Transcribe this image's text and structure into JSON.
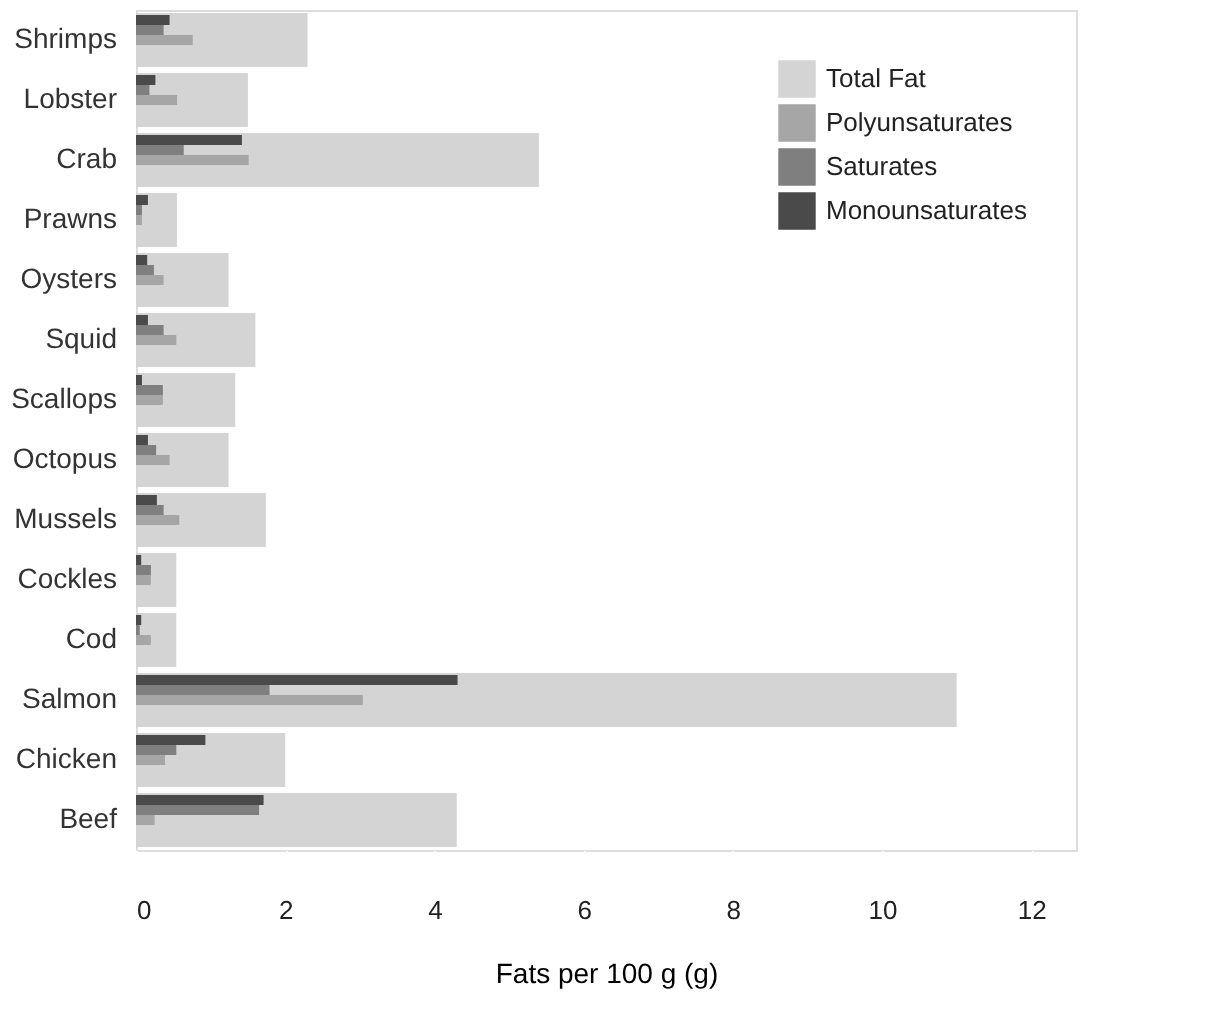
{
  "chart_data": {
    "type": "bar",
    "orientation": "horizontal",
    "xlabel": "Fats per 100 g (g)",
    "categories": [
      "Shrimps",
      "Lobster",
      "Crab",
      "Prawns",
      "Oysters",
      "Squid",
      "Scallops",
      "Octopus",
      "Mussels",
      "Cockles",
      "Cod",
      "Salmon",
      "Chicken",
      "Beef"
    ],
    "series": [
      {
        "name": "Total Fat",
        "color": "#d4d4d4",
        "values": [
          2.3,
          1.5,
          5.4,
          0.55,
          1.24,
          1.6,
          1.33,
          1.24,
          1.74,
          0.54,
          0.54,
          11.0,
          2.0,
          4.3
        ]
      },
      {
        "name": "Polyunsaturates",
        "color": "#a6a6a6",
        "values": [
          0.76,
          0.55,
          1.51,
          0.08,
          0.37,
          0.54,
          0.36,
          0.45,
          0.58,
          0.2,
          0.2,
          3.04,
          0.39,
          0.25
        ]
      },
      {
        "name": "Saturates",
        "color": "#7f7f7f",
        "values": [
          0.37,
          0.18,
          0.64,
          0.08,
          0.24,
          0.37,
          0.36,
          0.27,
          0.37,
          0.2,
          0.05,
          1.79,
          0.54,
          1.65
        ]
      },
      {
        "name": "Monounsaturates",
        "color": "#4a4a4a",
        "values": [
          0.45,
          0.26,
          1.42,
          0.16,
          0.15,
          0.16,
          0.08,
          0.16,
          0.28,
          0.07,
          0.07,
          4.31,
          0.93,
          1.71
        ]
      }
    ],
    "xlim": [
      0,
      12.6
    ],
    "xticks": [
      0,
      2,
      4,
      6,
      8,
      10,
      12
    ],
    "grid": false,
    "legend": "top right"
  }
}
